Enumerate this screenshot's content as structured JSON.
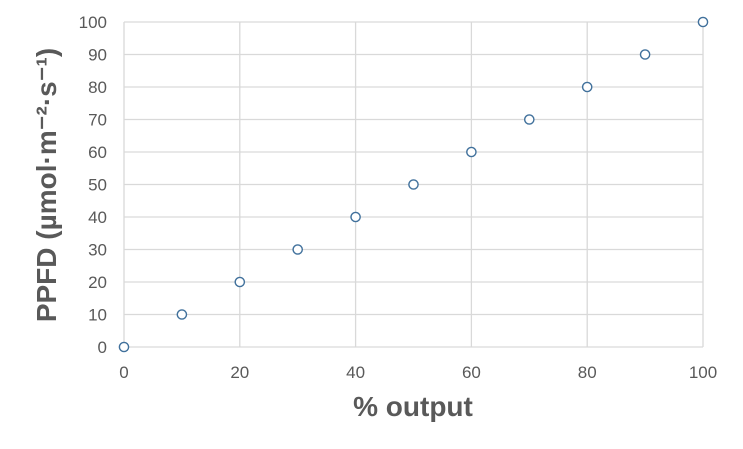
{
  "chart_data": {
    "type": "scatter",
    "title": "",
    "xlabel": "% output",
    "ylabel": "PPFD (µmol·m⁻²·s⁻¹)",
    "xlim": [
      0,
      100
    ],
    "ylim": [
      0,
      100
    ],
    "xticks": [
      0,
      20,
      40,
      60,
      80,
      100
    ],
    "yticks": [
      0,
      10,
      20,
      30,
      40,
      50,
      60,
      70,
      80,
      90,
      100
    ],
    "grid": true,
    "series": [
      {
        "marker": "open-circle",
        "color": "#41719c",
        "points": [
          {
            "x": 0,
            "y": 0
          },
          {
            "x": 10,
            "y": 10
          },
          {
            "x": 20,
            "y": 20
          },
          {
            "x": 30,
            "y": 30
          },
          {
            "x": 40,
            "y": 40
          },
          {
            "x": 50,
            "y": 50
          },
          {
            "x": 60,
            "y": 60
          },
          {
            "x": 70,
            "y": 70
          },
          {
            "x": 80,
            "y": 80
          },
          {
            "x": 90,
            "y": 90
          },
          {
            "x": 100,
            "y": 100
          }
        ]
      }
    ]
  }
}
